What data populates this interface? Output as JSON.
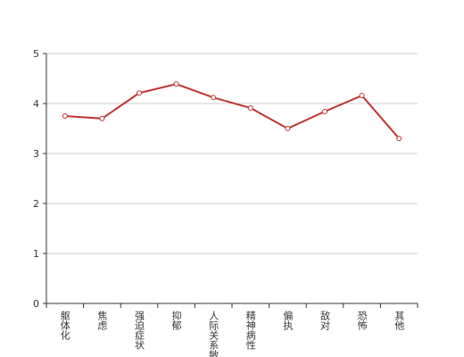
{
  "chart_data": {
    "type": "line",
    "categories": [
      "躯体化",
      "焦虑",
      "强迫症状",
      "抑郁",
      "人际关系敏感",
      "精神病性",
      "偏执",
      "敌对",
      "恐怖",
      "其他"
    ],
    "series": [
      {
        "color": "#c23531",
        "values": [
          3.75,
          3.7,
          4.21,
          4.39,
          4.12,
          3.91,
          3.5,
          3.84,
          4.16,
          3.3
        ]
      }
    ],
    "ylim": [
      0,
      5
    ],
    "yticks": [
      0,
      1,
      2,
      3,
      4,
      5
    ],
    "grid": true
  }
}
